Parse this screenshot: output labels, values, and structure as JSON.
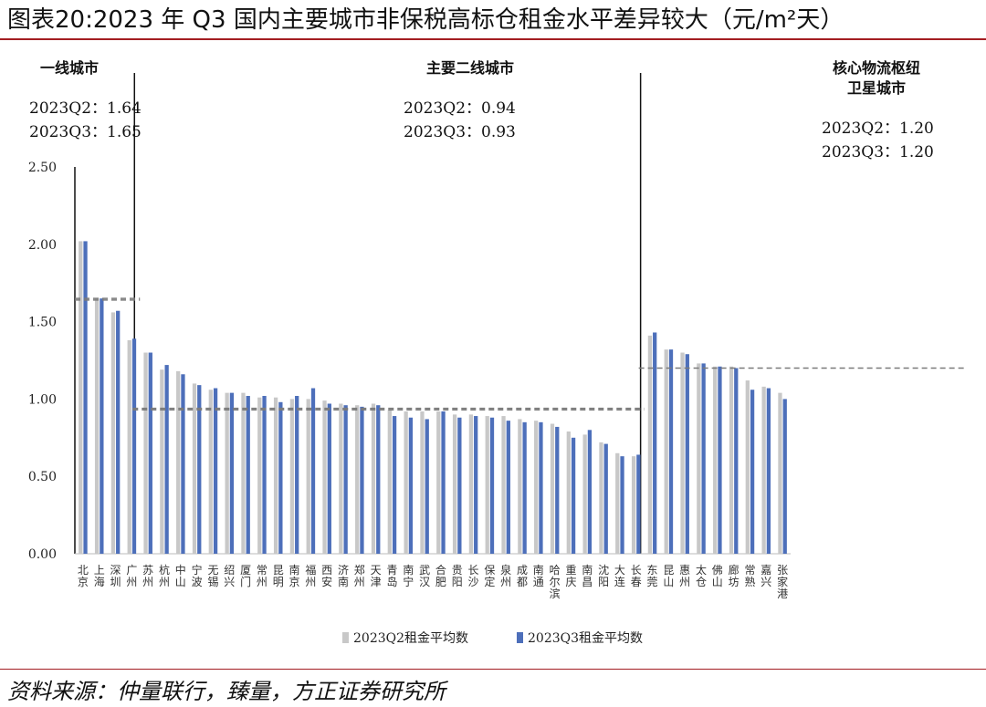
{
  "title": "图表20:2023 年 Q3 国内主要城市非保税高标仓租金水平差异较大（元/m²天）",
  "source": "资料来源：仲量联行，臻量，方正证券研究所",
  "colors": {
    "q2": "#c8c8c8",
    "q3": "#4d6fba",
    "avg_line": "#7a7a7a",
    "rule": "#a31d22"
  },
  "chart_data": {
    "type": "bar",
    "title": "",
    "xlabel": "",
    "ylabel": "",
    "ylim": [
      0,
      2.5
    ],
    "yticks": [
      "0.00",
      "0.50",
      "1.00",
      "1.50",
      "2.00",
      "2.50"
    ],
    "categories": [
      "北京",
      "上海",
      "深圳",
      "广州",
      "苏州",
      "杭州",
      "中山",
      "宁波",
      "无锡",
      "绍兴",
      "厦门",
      "常州",
      "昆明",
      "南京",
      "福州",
      "西安",
      "济南",
      "郑州",
      "天津",
      "青岛",
      "南宁",
      "武汉",
      "合肥",
      "贵阳",
      "长沙",
      "保定",
      "泉州",
      "成都",
      "南通",
      "哈尔滨",
      "重庆",
      "南昌",
      "沈阳",
      "大连",
      "长春",
      "东莞",
      "昆山",
      "惠州",
      "太仓",
      "佛山",
      "廊坊",
      "常熟",
      "嘉兴",
      "张家港"
    ],
    "series": [
      {
        "name": "2023Q2租金平均数",
        "values": [
          2.02,
          1.65,
          1.56,
          1.38,
          1.3,
          1.19,
          1.18,
          1.1,
          1.06,
          1.04,
          1.04,
          1.01,
          1.01,
          1.0,
          1.0,
          0.99,
          0.97,
          0.96,
          0.97,
          0.93,
          0.92,
          0.92,
          0.92,
          0.9,
          0.9,
          0.89,
          0.89,
          0.87,
          0.86,
          0.84,
          0.79,
          0.77,
          0.72,
          0.65,
          0.63,
          1.41,
          1.32,
          1.3,
          1.23,
          1.21,
          1.21,
          1.12,
          1.08,
          1.04
        ]
      },
      {
        "name": "2023Q3租金平均数",
        "values": [
          2.02,
          1.65,
          1.57,
          1.39,
          1.3,
          1.22,
          1.16,
          1.09,
          1.07,
          1.04,
          1.02,
          1.02,
          0.98,
          1.02,
          1.07,
          0.97,
          0.96,
          0.95,
          0.96,
          0.89,
          0.88,
          0.87,
          0.92,
          0.88,
          0.89,
          0.88,
          0.86,
          0.85,
          0.85,
          0.82,
          0.75,
          0.8,
          0.71,
          0.63,
          0.64,
          1.43,
          1.32,
          1.29,
          1.23,
          1.21,
          1.2,
          1.06,
          1.07,
          1.0
        ]
      }
    ],
    "groups": [
      {
        "name": "一线城市",
        "start": 0,
        "end": 3,
        "q2_label": "2023Q2：1.64",
        "q3_label": "2023Q3：1.65",
        "avg_q2": 1.64,
        "avg_q3": 1.65
      },
      {
        "name": "主要二线城市",
        "start": 4,
        "end": 34,
        "q2_label": "2023Q2：0.94",
        "q3_label": "2023Q3：0.93",
        "avg_q2": 0.94,
        "avg_q3": 0.93
      },
      {
        "name": "核心物流枢纽卫星城市",
        "name_lines": [
          "核心物流枢纽",
          "卫星城市"
        ],
        "start": 35,
        "end": 43,
        "q2_label": "2023Q2：1.20",
        "q3_label": "2023Q3：1.20",
        "avg_q2": 1.2,
        "avg_q3": 1.2
      }
    ],
    "legend_position": "bottom"
  }
}
